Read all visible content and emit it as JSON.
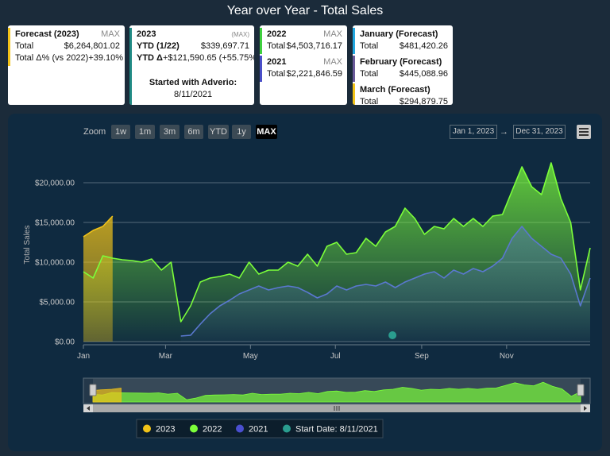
{
  "header": {
    "title": "Year over Year - Total Sales"
  },
  "cards": [
    {
      "sections": [
        {
          "title": "Forecast (2023)",
          "badge": "MAX",
          "color": "#f2c318",
          "rows": [
            {
              "label": "Total",
              "value": "$6,264,801.02"
            },
            {
              "label": "Total Δ% (vs 2022)",
              "value": "+39.10%"
            }
          ]
        }
      ]
    },
    {
      "sections": [
        {
          "title": "2023",
          "badge": "(MAX)",
          "color": "#1f8a84",
          "rows": [
            {
              "label": "YTD (1/22)",
              "value": "$339,697.71"
            },
            {
              "label": "YTD Δ",
              "value": "+$121,590.65 (+55.75%)"
            }
          ]
        }
      ],
      "note": {
        "title": "Started with Adverio:",
        "value": "8/11/2021"
      }
    },
    {
      "sections": [
        {
          "title": "2022",
          "badge": "MAX",
          "color": "#3ecf3e",
          "rows": [
            {
              "label": "Total",
              "value": "$4,503,716.17"
            }
          ]
        },
        {
          "title": "2021",
          "badge": "MAX",
          "color": "#4a4fc8",
          "rows": [
            {
              "label": "Total",
              "value": "$2,221,846.59"
            }
          ]
        }
      ]
    },
    {
      "sections": [
        {
          "title": "January (Forecast)",
          "color": "#22a7e0",
          "rows": [
            {
              "label": "Total",
              "value": "$481,420.26"
            }
          ]
        },
        {
          "title": "February (Forecast)",
          "color": "#6a5a9a",
          "rows": [
            {
              "label": "Total",
              "value": "$445,088.96"
            }
          ]
        },
        {
          "title": "March (Forecast)",
          "color": "#f2c318",
          "rows": [
            {
              "label": "Total",
              "value": "$294,879.75"
            }
          ]
        }
      ]
    }
  ],
  "toolbar": {
    "zoom_label": "Zoom",
    "buttons": [
      "1w",
      "1m",
      "3m",
      "6m",
      "YTD",
      "1y",
      "MAX"
    ],
    "selected": "MAX",
    "range_from": "Jan 1, 2023",
    "range_sep": "→",
    "range_to": "Dec 31, 2023"
  },
  "chart_data": {
    "type": "area",
    "y_label": "Total Sales",
    "x": [
      0,
      7,
      14,
      21,
      28,
      35,
      42,
      49,
      56,
      63,
      70,
      77,
      84,
      91,
      98,
      105,
      112,
      119,
      126,
      133,
      140,
      147,
      154,
      161,
      168,
      175,
      182,
      189,
      196,
      203,
      210,
      217,
      224,
      231,
      238,
      245,
      252,
      259,
      266,
      273,
      280,
      287,
      294,
      301,
      308,
      315,
      322,
      329,
      336,
      343,
      350,
      357,
      364
    ],
    "xlim": [
      0,
      364
    ],
    "xticks": [
      {
        "value": 0,
        "label": "Jan"
      },
      {
        "value": 59,
        "label": "Mar"
      },
      {
        "value": 120,
        "label": "May"
      },
      {
        "value": 181,
        "label": "Jul"
      },
      {
        "value": 243,
        "label": "Sep"
      },
      {
        "value": 304,
        "label": "Nov"
      }
    ],
    "ylim": [
      0,
      24500
    ],
    "yticks": [
      {
        "value": 0,
        "label": "$0.00"
      },
      {
        "value": 5000,
        "label": "$5,000.00"
      },
      {
        "value": 10000,
        "label": "$10,000.00"
      },
      {
        "value": 15000,
        "label": "$15,000.00"
      },
      {
        "value": 20000,
        "label": "$20,000.00"
      }
    ],
    "grid": true,
    "legend": "bottom",
    "series": [
      {
        "name": "2023",
        "color": "#f2c318",
        "values": [
          13200,
          14000,
          14500,
          15800,
          null,
          null,
          null,
          null,
          null,
          null,
          null,
          null,
          null,
          null,
          null,
          null,
          null,
          null,
          null,
          null,
          null,
          null,
          null,
          null,
          null,
          null,
          null,
          null,
          null,
          null,
          null,
          null,
          null,
          null,
          null,
          null,
          null,
          null,
          null,
          null,
          null,
          null,
          null,
          null,
          null,
          null,
          null,
          null,
          null,
          null,
          null,
          null,
          null
        ]
      },
      {
        "name": "2022",
        "color": "#7cff3a",
        "values": [
          8800,
          8000,
          10800,
          10500,
          10300,
          10200,
          10000,
          10400,
          9000,
          10000,
          2500,
          4500,
          7500,
          8000,
          8200,
          8500,
          8000,
          10000,
          8500,
          9000,
          9000,
          10000,
          9500,
          11000,
          9500,
          12000,
          12500,
          11000,
          11200,
          13000,
          12000,
          13800,
          14500,
          16800,
          15500,
          13500,
          14500,
          14200,
          15500,
          14500,
          15500,
          14500,
          15800,
          16000,
          19000,
          22000,
          19500,
          18500,
          22500,
          18000,
          15000,
          6500,
          11800
        ]
      },
      {
        "name": "2021",
        "color": "#5a78d0",
        "values": [
          null,
          null,
          null,
          null,
          null,
          null,
          null,
          null,
          null,
          null,
          700,
          800,
          2200,
          3500,
          4500,
          5200,
          6000,
          6500,
          7000,
          6500,
          6800,
          7000,
          6800,
          6200,
          5500,
          6000,
          7000,
          6500,
          7000,
          7200,
          7000,
          7500,
          6800,
          7500,
          8000,
          8500,
          8800,
          8000,
          9000,
          8500,
          9200,
          8800,
          9500,
          10500,
          13000,
          14500,
          13000,
          12000,
          11000,
          10500,
          8500,
          4500,
          8000
        ]
      },
      {
        "name": "Start Date: 8/11/2021",
        "color": "#2a9d8f",
        "type": "marker",
        "x": [
          222
        ],
        "values": [
          0
        ]
      }
    ]
  }
}
